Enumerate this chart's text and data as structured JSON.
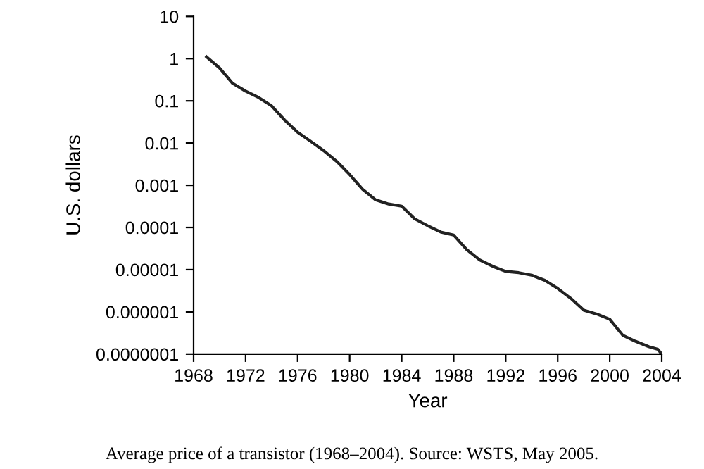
{
  "chart_data": {
    "type": "line",
    "xlabel": "Year",
    "ylabel": "U.S. dollars",
    "log": "y",
    "color": "#222222",
    "grid": false,
    "marker": "none",
    "line_style": "solid",
    "x": [
      1969,
      1970,
      1971,
      1972,
      1973,
      1974,
      1975,
      1976,
      1977,
      1978,
      1979,
      1980,
      1981,
      1982,
      1983,
      1984,
      1985,
      1986,
      1987,
      1988,
      1989,
      1990,
      1991,
      1992,
      1993,
      1994,
      1995,
      1996,
      1997,
      1998,
      1999,
      2000,
      2001,
      2002,
      2003,
      2003.7,
      2004
    ],
    "values": [
      1.1,
      0.6,
      0.26,
      0.17,
      0.12,
      0.076,
      0.035,
      0.018,
      0.011,
      0.0066,
      0.0037,
      0.0018,
      0.0008,
      0.00045,
      0.00036,
      0.00032,
      0.00016,
      0.00011,
      7.8e-05,
      6.6e-05,
      3e-05,
      1.7e-05,
      1.2e-05,
      9.1e-06,
      8.5e-06,
      7.4e-06,
      5.6e-06,
      3.6e-06,
      2.1e-06,
      1.1e-06,
      8.9e-07,
      6.7e-07,
      2.8e-07,
      2e-07,
      1.5e-07,
      1.3e-07,
      1e-07
    ],
    "xlim": [
      1968,
      2004
    ],
    "ylim": [
      1e-07,
      10
    ],
    "xticks": [
      1968,
      1972,
      1976,
      1980,
      1984,
      1988,
      1992,
      1996,
      2000,
      2004
    ],
    "yticks": [
      {
        "value": 1e-07,
        "label": "0.0000001"
      },
      {
        "value": 1e-06,
        "label": "0.000001"
      },
      {
        "value": 1e-05,
        "label": "0.00001"
      },
      {
        "value": 0.0001,
        "label": "0.0001"
      },
      {
        "value": 0.001,
        "label": "0.001"
      },
      {
        "value": 0.01,
        "label": "0.01"
      },
      {
        "value": 0.1,
        "label": "0.1"
      },
      {
        "value": 1,
        "label": "1"
      },
      {
        "value": 10,
        "label": "10"
      }
    ],
    "annotations": [
      "Average price of a transistor (1968–2004). Source: WSTS, May 2005."
    ]
  }
}
